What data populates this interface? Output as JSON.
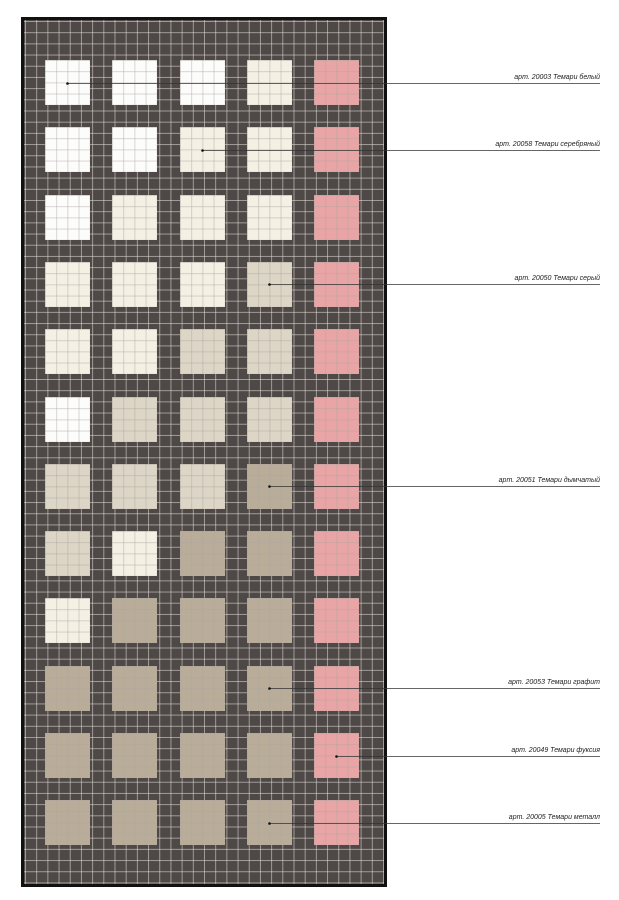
{
  "palette": {
    "white": "#fcfcfb",
    "cream": "#f4f0e4",
    "beige": "#ddd5c6",
    "taupe": "#b9ad9a",
    "pink": "#e9a5a6",
    "grout": "#4e4946"
  },
  "tile_rows": [
    [
      "white",
      "white",
      "white",
      "cream",
      "pink"
    ],
    [
      "white",
      "white",
      "cream",
      "cream",
      "pink"
    ],
    [
      "white",
      "cream",
      "cream",
      "cream",
      "pink"
    ],
    [
      "cream",
      "cream",
      "cream",
      "beige",
      "pink"
    ],
    [
      "cream",
      "cream",
      "beige",
      "beige",
      "pink"
    ],
    [
      "white",
      "beige",
      "beige",
      "beige",
      "pink"
    ],
    [
      "beige",
      "beige",
      "beige",
      "taupe",
      "pink"
    ],
    [
      "beige",
      "cream",
      "taupe",
      "taupe",
      "pink"
    ],
    [
      "cream",
      "taupe",
      "taupe",
      "taupe",
      "pink"
    ],
    [
      "taupe",
      "taupe",
      "taupe",
      "taupe",
      "pink"
    ],
    [
      "taupe",
      "taupe",
      "taupe",
      "taupe",
      "pink"
    ],
    [
      "taupe",
      "taupe",
      "taupe",
      "taupe",
      "pink"
    ]
  ],
  "callouts": [
    {
      "text": "арт. 20003 Темари белый",
      "row": 0,
      "col": 0
    },
    {
      "text": "арт. 20058 Темари серебряный",
      "row": 1,
      "col": 2
    },
    {
      "text": "арт. 20050 Темари серый",
      "row": 3,
      "col": 3
    },
    {
      "text": "арт. 20051 Темари дымчатый",
      "row": 6,
      "col": 3
    },
    {
      "text": "арт. 20053 Темари графит",
      "row": 9,
      "col": 3
    },
    {
      "text": "арт. 20049 Темари фуксия",
      "row": 10,
      "col": 4
    },
    {
      "text": "арт. 20005 Темари металл",
      "row": 11,
      "col": 3
    }
  ]
}
